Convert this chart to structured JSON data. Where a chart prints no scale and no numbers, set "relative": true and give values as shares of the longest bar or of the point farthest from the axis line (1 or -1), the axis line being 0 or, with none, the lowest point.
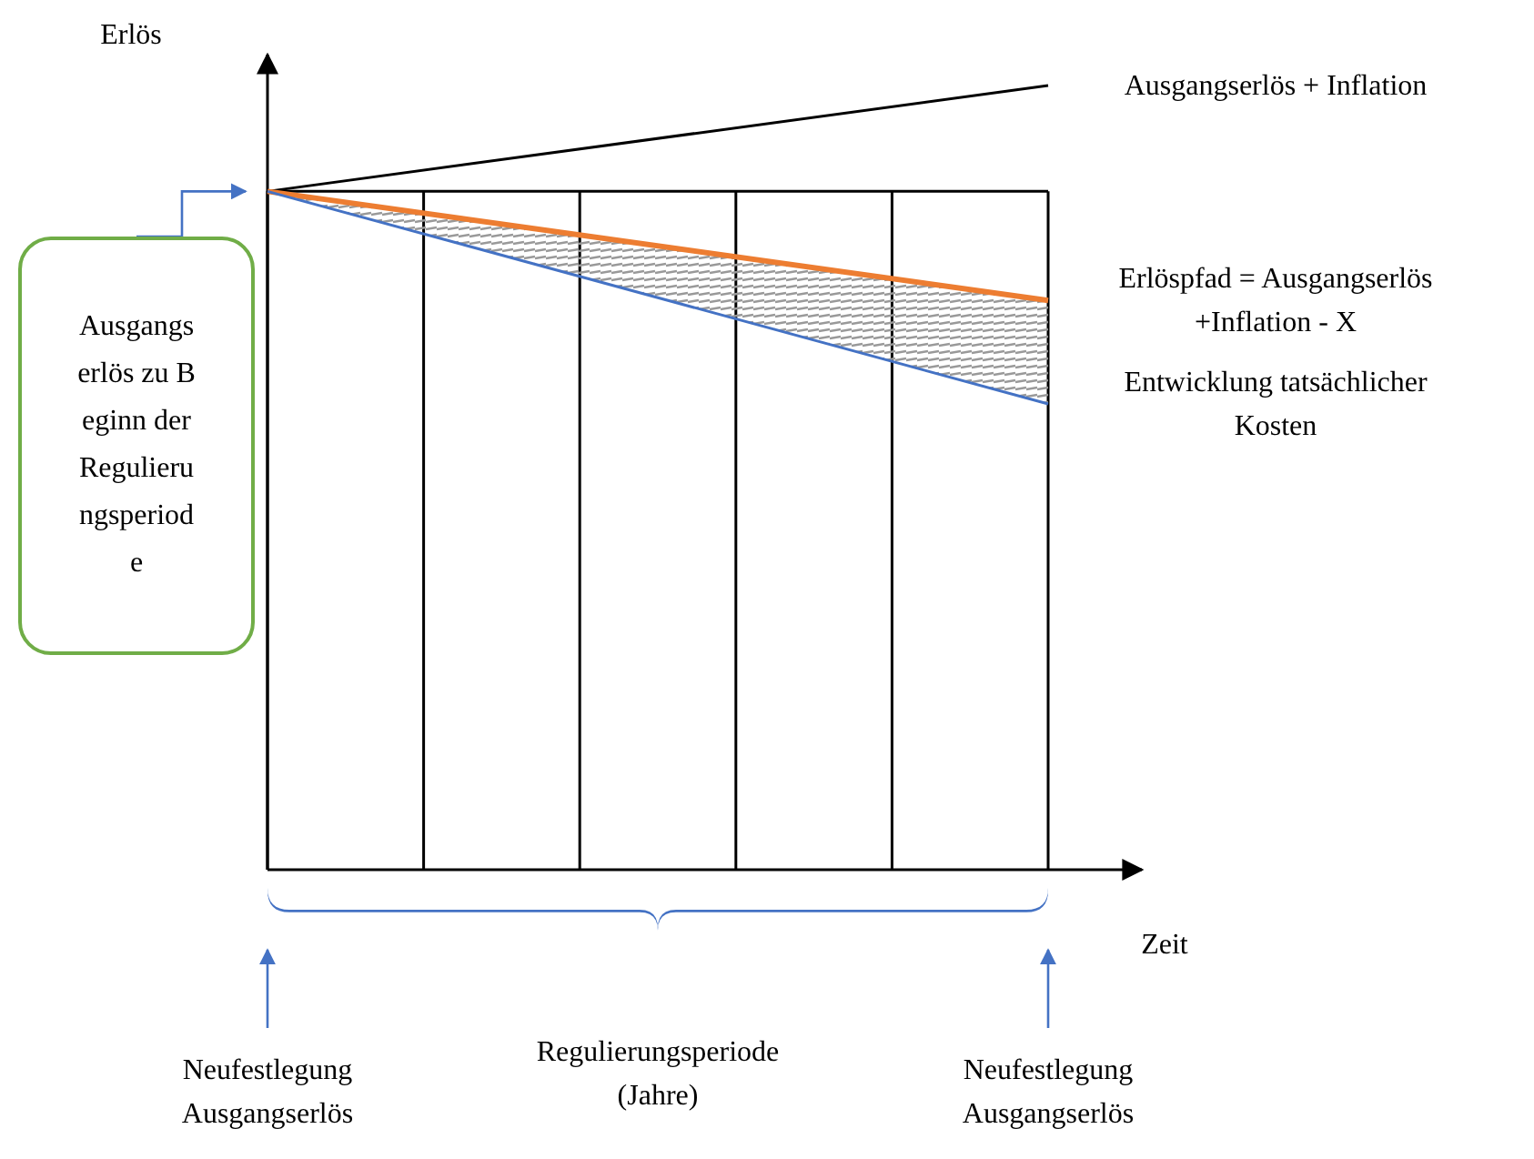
{
  "chart_data": {
    "type": "line",
    "relative": true,
    "xlabel": "Zeit",
    "ylabel": "Erlös",
    "categories": [
      null,
      null,
      null,
      null,
      null,
      null
    ],
    "grid": "x",
    "marker": "none",
    "line_style": "solid",
    "series": [
      {
        "name": "Ausgangserlös + Inflation",
        "color": "#000000",
        "values": [
          0.865,
          null,
          null,
          null,
          null,
          1
        ]
      },
      {
        "name": "Erlöspfad = Ausgangserlös +Inflation - X",
        "color": "#ed7d31",
        "values": [
          0.865,
          null,
          null,
          null,
          null,
          0.726
        ]
      },
      {
        "name": "Entwicklung tatsächlicher Kosten",
        "color": "#4472c4",
        "values": [
          0.865,
          null,
          null,
          null,
          null,
          0.594
        ]
      }
    ],
    "annotations": [
      "Ausgangserlös zu Beginn der Regulierungsperiode",
      "Regulierungsperiode (Jahre)",
      "Neufestlegung Ausgangserlös",
      "Neufestlegung Ausgangserlös"
    ]
  }
}
